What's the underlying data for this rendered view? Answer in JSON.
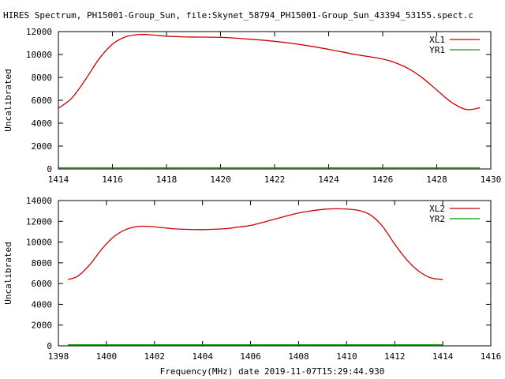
{
  "title": "HIRES Spectrum, PH15001-Group_Sun, file:Skynet_58794_PH15001-Group_Sun_43394_53155.spect.c",
  "xlabel": "Frequency(MHz) date 2019-11-07T15:29:44.930",
  "colors": {
    "xl": "#cc0000",
    "yr": "#00a000",
    "axis": "#000000"
  },
  "chart_data": [
    {
      "type": "line",
      "title": "HIRES Spectrum, PH15001-Group_Sun, file:Skynet_58794_PH15001-Group_Sun_43394_53155.spect.c",
      "ylabel": "Uncalibrated",
      "xlabel": "",
      "xlim": [
        1414,
        1430
      ],
      "ylim": [
        0,
        12000
      ],
      "xticks": [
        1414,
        1416,
        1418,
        1420,
        1422,
        1424,
        1426,
        1428,
        1430
      ],
      "yticks": [
        0,
        2000,
        4000,
        6000,
        8000,
        10000,
        12000
      ],
      "grid": false,
      "legend": "top-right",
      "series": [
        {
          "name": "XL1",
          "color": "#cc0000",
          "x": [
            1414.0,
            1414.5,
            1415.0,
            1415.5,
            1416.0,
            1416.5,
            1417.0,
            1417.5,
            1418.0,
            1418.5,
            1419.0,
            1420.0,
            1421.0,
            1422.0,
            1423.0,
            1424.0,
            1425.0,
            1426.0,
            1426.5,
            1427.0,
            1427.5,
            1428.0,
            1428.5,
            1429.0,
            1429.3,
            1429.6
          ],
          "y": [
            5300,
            6200,
            7800,
            9600,
            10900,
            11550,
            11750,
            11700,
            11600,
            11550,
            11520,
            11500,
            11350,
            11150,
            10850,
            10450,
            10000,
            9600,
            9250,
            8700,
            7900,
            6900,
            5900,
            5250,
            5200,
            5350
          ]
        },
        {
          "name": "YR1",
          "color": "#00a000",
          "x": [
            1414.0,
            1429.6
          ],
          "y": [
            100,
            100
          ]
        }
      ]
    },
    {
      "type": "line",
      "title": "",
      "ylabel": "Uncalibrated",
      "xlabel": "Frequency(MHz) date 2019-11-07T15:29:44.930",
      "xlim": [
        1398,
        1416
      ],
      "ylim": [
        0,
        14000
      ],
      "xticks": [
        1398,
        1400,
        1402,
        1404,
        1406,
        1408,
        1410,
        1412,
        1414,
        1416
      ],
      "yticks": [
        0,
        2000,
        4000,
        6000,
        8000,
        10000,
        12000,
        14000
      ],
      "grid": false,
      "legend": "top-right",
      "series": [
        {
          "name": "XL2",
          "color": "#cc0000",
          "x": [
            1398.4,
            1398.8,
            1399.3,
            1399.8,
            1400.3,
            1400.8,
            1401.3,
            1401.8,
            1402.5,
            1403.0,
            1404.0,
            1405.0,
            1405.5,
            1406.0,
            1407.0,
            1408.0,
            1409.0,
            1409.8,
            1410.5,
            1411.0,
            1411.5,
            1412.0,
            1412.5,
            1413.0,
            1413.5,
            1414.0
          ],
          "y": [
            6400,
            6700,
            7800,
            9300,
            10500,
            11200,
            11500,
            11500,
            11350,
            11250,
            11200,
            11300,
            11450,
            11600,
            12200,
            12800,
            13150,
            13200,
            13050,
            12600,
            11500,
            9800,
            8300,
            7200,
            6550,
            6400
          ]
        },
        {
          "name": "YR2",
          "color": "#00a000",
          "x": [
            1398.4,
            1414.0
          ],
          "y": [
            100,
            100
          ]
        }
      ]
    }
  ]
}
